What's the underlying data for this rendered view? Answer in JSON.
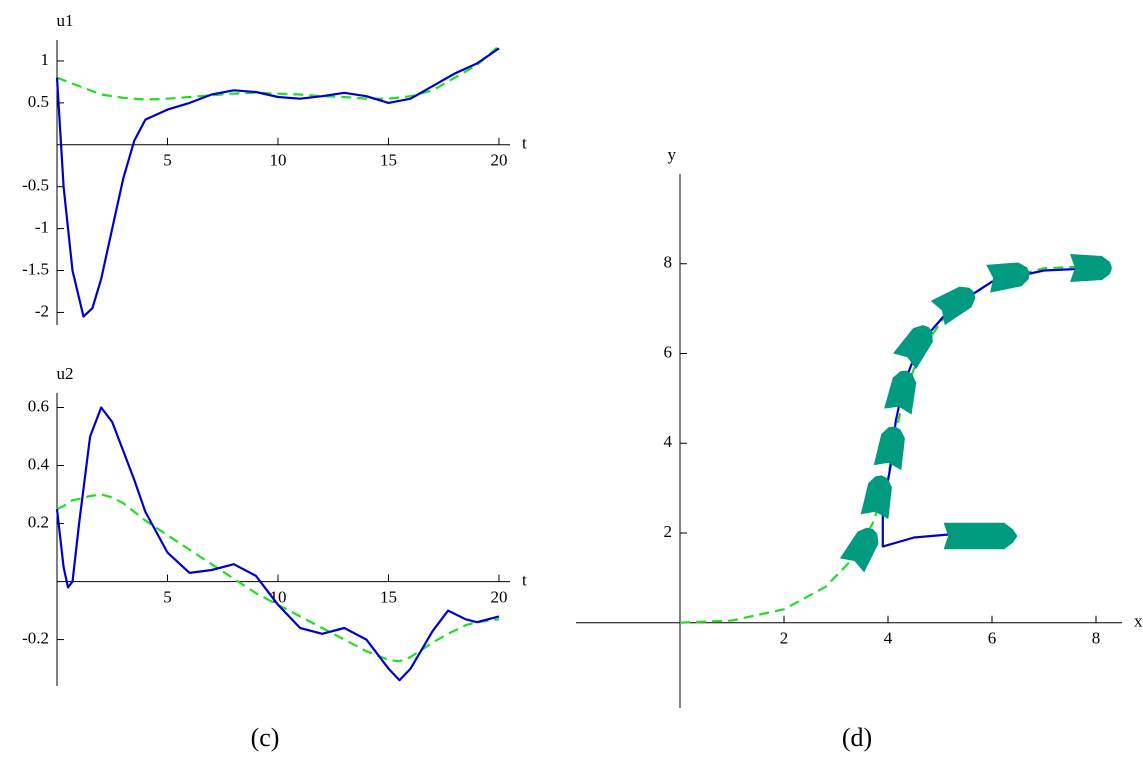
{
  "captions": [
    "(c)",
    "(d)"
  ],
  "chart_data": [
    {
      "type": "line",
      "xlabel": "t",
      "ylabel": "u1",
      "xlim": [
        0,
        20.5
      ],
      "ylim": [
        -2.15,
        1.25
      ],
      "xticks": [
        5,
        10,
        15,
        20
      ],
      "yticks": [
        -2,
        -1.5,
        -1,
        -0.5,
        0.5,
        1
      ],
      "x": [
        0,
        0.3,
        0.7,
        1.2,
        1.6,
        2,
        2.5,
        3,
        3.5,
        4,
        5,
        6,
        7,
        8,
        9,
        10,
        11,
        12,
        13,
        14,
        15,
        16,
        17,
        18,
        19,
        20
      ],
      "series": [
        {
          "color": "#0000cc",
          "style": "solid",
          "values": [
            0.8,
            -0.5,
            -1.5,
            -2.05,
            -1.95,
            -1.6,
            -1.0,
            -0.4,
            0.05,
            0.3,
            0.42,
            0.5,
            0.6,
            0.65,
            0.63,
            0.57,
            0.55,
            0.58,
            0.62,
            0.58,
            0.5,
            0.55,
            0.7,
            0.85,
            0.97,
            1.15
          ]
        },
        {
          "color": "#22dd22",
          "style": "dashed",
          "values": [
            0.8,
            0.77,
            0.73,
            0.68,
            0.64,
            0.6,
            0.58,
            0.56,
            0.55,
            0.54,
            0.55,
            0.57,
            0.59,
            0.61,
            0.62,
            0.61,
            0.6,
            0.58,
            0.57,
            0.55,
            0.55,
            0.58,
            0.65,
            0.8,
            0.95,
            1.18
          ]
        }
      ]
    },
    {
      "type": "line",
      "xlabel": "t",
      "ylabel": "u2",
      "xlim": [
        0,
        20.5
      ],
      "ylim": [
        -0.36,
        0.65
      ],
      "xticks": [
        5,
        10,
        15,
        20
      ],
      "yticks": [
        -0.2,
        0.2,
        0.4,
        0.6
      ],
      "x": [
        0,
        0.3,
        0.5,
        0.7,
        1,
        1.5,
        2,
        2.5,
        3,
        3.5,
        4,
        5,
        6,
        7,
        8,
        9,
        10,
        11,
        12,
        13,
        14,
        15,
        15.5,
        16,
        17,
        17.7,
        18.5,
        19,
        20
      ],
      "series": [
        {
          "color": "#0000cc",
          "style": "solid",
          "values": [
            0.25,
            0.05,
            -0.02,
            0.0,
            0.2,
            0.5,
            0.6,
            0.55,
            0.45,
            0.35,
            0.24,
            0.1,
            0.03,
            0.04,
            0.06,
            0.02,
            -0.08,
            -0.16,
            -0.18,
            -0.16,
            -0.2,
            -0.3,
            -0.34,
            -0.3,
            -0.17,
            -0.1,
            -0.13,
            -0.14,
            -0.12
          ]
        },
        {
          "color": "#22dd22",
          "style": "dashed",
          "values": [
            0.25,
            0.26,
            0.27,
            0.28,
            0.285,
            0.295,
            0.3,
            0.29,
            0.27,
            0.24,
            0.21,
            0.16,
            0.11,
            0.06,
            0.01,
            -0.04,
            -0.08,
            -0.12,
            -0.16,
            -0.2,
            -0.24,
            -0.27,
            -0.275,
            -0.26,
            -0.21,
            -0.18,
            -0.15,
            -0.14,
            -0.13
          ]
        }
      ]
    },
    {
      "type": "line",
      "xlabel": "x",
      "ylabel": "y",
      "xlim": [
        -2,
        8.5
      ],
      "ylim": [
        -1.9,
        10
      ],
      "xticks": [
        2,
        4,
        6,
        8
      ],
      "yticks": [
        2,
        4,
        6,
        8
      ],
      "series": [
        {
          "color": "#0000cc",
          "style": "solid",
          "x": [
            6,
            5.5,
            4.5,
            3.9,
            3.9,
            4.05,
            4.15,
            4.3,
            4.6,
            5.2,
            6,
            7,
            8
          ],
          "values": [
            2,
            2,
            1.9,
            1.7,
            2.5,
            3.5,
            4.5,
            5.3,
            6.2,
            7,
            7.6,
            7.85,
            7.9
          ]
        },
        {
          "color": "#22dd22",
          "style": "dashed",
          "x": [
            0,
            1,
            2,
            2.8,
            3.3,
            3.7,
            4,
            4.1,
            4.3,
            4.6,
            5.2,
            6,
            7,
            8
          ],
          "values": [
            0,
            0.05,
            0.3,
            0.8,
            1.4,
            2.2,
            3.2,
            4,
            5,
            6,
            7,
            7.6,
            7.9,
            7.95
          ]
        }
      ]
    }
  ]
}
